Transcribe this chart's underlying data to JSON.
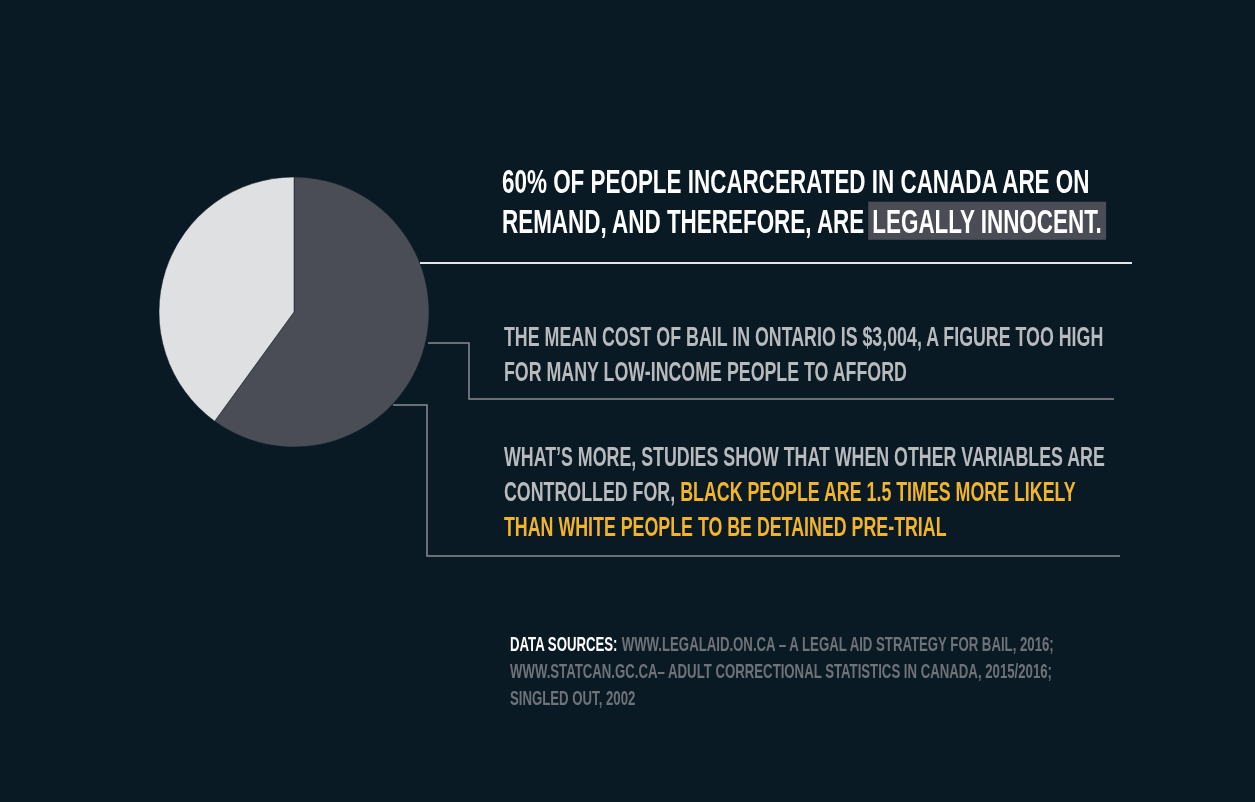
{
  "chart_data": {
    "type": "pie",
    "title": "60% OF PEOPLE INCARCERATED IN CANADA ARE ON REMAND, AND THEREFORE, ARE LEGALLY INNOCENT.",
    "categories": [
      null,
      null
    ],
    "values": [
      60,
      40
    ],
    "colors": [
      "#4a4d55",
      "#dfe0e2"
    ],
    "annotations": [
      "THE MEAN COST OF BAIL IN ONTARIO IS $3,004, A FIGURE TOO HIGH FOR MANY LOW-INCOME PEOPLE TO AFFORD",
      "WHAT’S MORE, STUDIES SHOW THAT WHEN OTHER VARIABLES ARE CONTROLLED FOR,",
      "BLACK PEOPLE ARE 1.5 TIMES MORE LIKELY THAN WHITE PEOPLE TO BE DETAINED PRE-TRIAL",
      "DATA SOURCES:",
      "WWW.LEGALAID.ON.CA – A LEGAL AID STRATEGY FOR BAIL, 2016; WWW.STATCAN.GC.CA– ADULT CORRECTIONAL STATISTICS IN CANADA, 2015/2016; SINGLED OUT, 2002"
    ]
  }
}
